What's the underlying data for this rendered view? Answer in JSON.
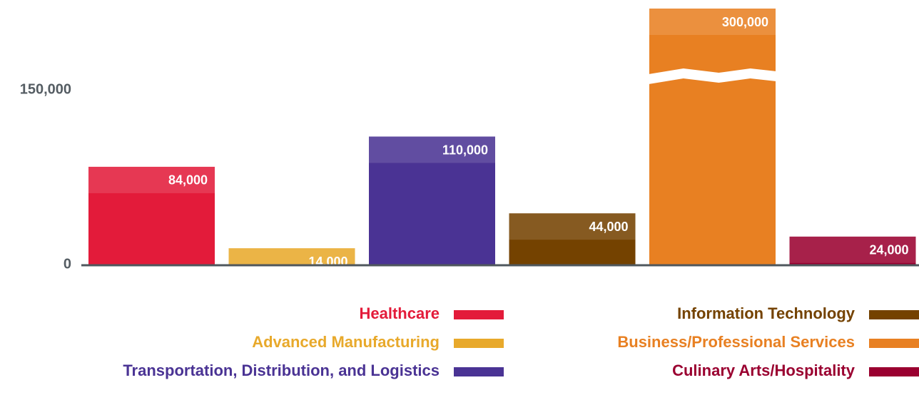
{
  "chart_data": {
    "type": "bar",
    "categories": [
      "Healthcare",
      "Advanced Manufacturing",
      "Transportation, Distribution, and Logistics",
      "Information Technology",
      "Business/Professional Services",
      "Culinary Arts/Hospitality"
    ],
    "values": [
      84000,
      14000,
      110000,
      44000,
      300000,
      24000
    ],
    "value_labels": [
      "84,000",
      "14,000",
      "110,000",
      "44,000",
      "300,000",
      "24,000"
    ],
    "colors": [
      "#e31b3a",
      "#e8a92b",
      "#4a3394",
      "#744200",
      "#e88022",
      "#9a0030"
    ],
    "ylim": [
      0,
      220000
    ],
    "yticks": [
      0,
      {
        "value": 150000,
        "label": "150,000"
      }
    ],
    "grid": true
  }
}
